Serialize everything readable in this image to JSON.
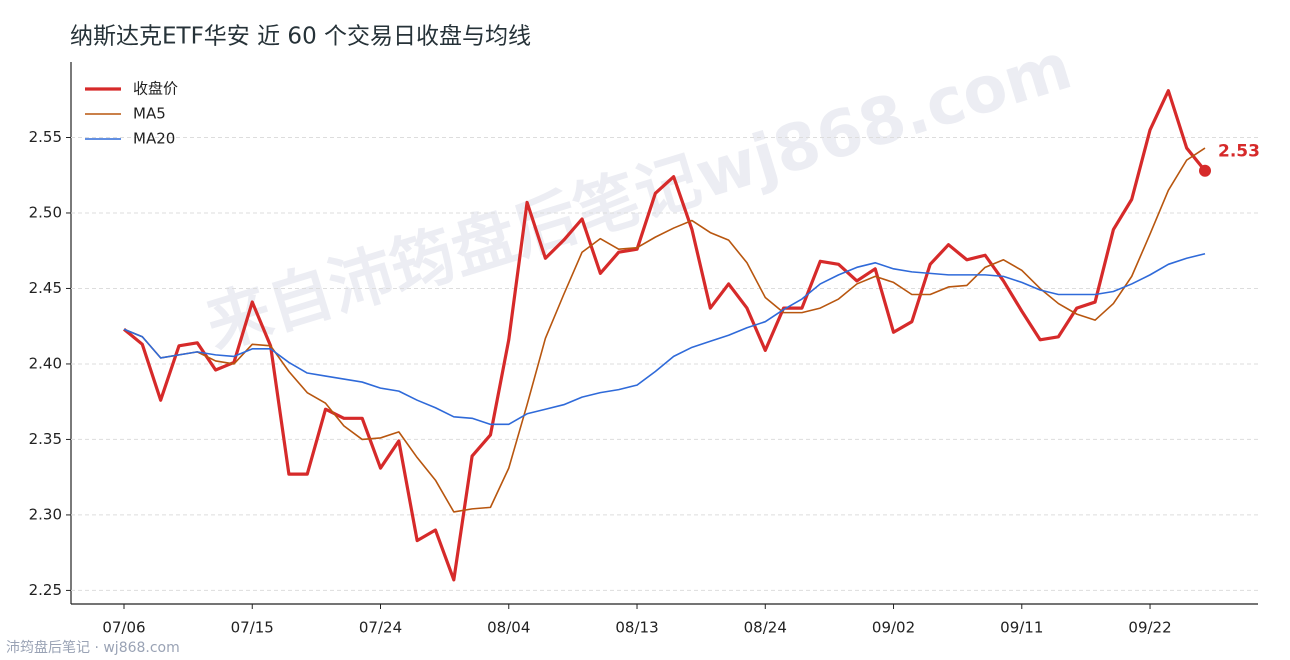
{
  "chart_data": {
    "type": "line",
    "title": "纳斯达克ETF华安 近 60 个交易日收盘与均线",
    "watermark": "来自沛筠盘后笔记wj868.com",
    "footer": "沛筠盘后笔记 · wj868.com",
    "categories": [
      "07/06",
      null,
      null,
      null,
      null,
      null,
      null,
      "07/15",
      null,
      null,
      null,
      null,
      null,
      null,
      "07/24",
      null,
      null,
      null,
      null,
      null,
      null,
      "08/04",
      null,
      null,
      null,
      null,
      null,
      null,
      "08/13",
      null,
      null,
      null,
      null,
      null,
      null,
      "08/24",
      null,
      null,
      null,
      null,
      null,
      null,
      "09/02",
      null,
      null,
      null,
      null,
      null,
      null,
      "09/11",
      null,
      null,
      null,
      null,
      null,
      null,
      "09/22",
      null,
      null,
      null
    ],
    "series": [
      {
        "name": "收盘价",
        "color": "#d62a2a",
        "values": [
          2.423,
          2.413,
          2.376,
          2.412,
          2.414,
          2.396,
          2.401,
          2.441,
          2.412,
          2.327,
          2.327,
          2.37,
          2.364,
          2.364,
          2.331,
          2.349,
          2.283,
          2.29,
          2.257,
          2.339,
          2.353,
          2.416,
          2.507,
          2.47,
          2.482,
          2.496,
          2.46,
          2.474,
          2.476,
          2.513,
          2.524,
          2.489,
          2.437,
          2.453,
          2.437,
          2.409,
          2.437,
          2.437,
          2.468,
          2.466,
          2.455,
          2.463,
          2.421,
          2.428,
          2.466,
          2.479,
          2.469,
          2.472,
          2.455,
          2.435,
          2.416,
          2.418,
          2.437,
          2.441,
          2.489,
          2.509,
          2.555,
          2.581,
          2.543,
          2.528
        ],
        "value_labels": [
          null,
          null,
          null,
          null,
          null,
          null,
          null,
          null,
          null,
          null,
          null,
          null,
          null,
          null,
          null,
          null,
          null,
          null,
          null,
          null,
          null,
          null,
          null,
          null,
          null,
          null,
          null,
          null,
          null,
          null,
          null,
          null,
          null,
          null,
          null,
          null,
          null,
          null,
          null,
          null,
          null,
          null,
          null,
          null,
          null,
          null,
          null,
          null,
          null,
          null,
          null,
          null,
          null,
          null,
          null,
          null,
          null,
          null,
          null,
          "2.53"
        ]
      },
      {
        "name": "MA5",
        "color": "#b8560f",
        "values": [
          2.423,
          2.418,
          2.404,
          2.406,
          2.408,
          2.402,
          2.4,
          2.413,
          2.412,
          2.395,
          2.381,
          2.374,
          2.359,
          2.35,
          2.351,
          2.355,
          2.338,
          2.323,
          2.302,
          2.304,
          2.305,
          2.331,
          2.373,
          2.417,
          2.446,
          2.474,
          2.483,
          2.476,
          2.477,
          2.484,
          2.49,
          2.495,
          2.487,
          2.482,
          2.467,
          2.444,
          2.434,
          2.434,
          2.437,
          2.443,
          2.453,
          2.458,
          2.454,
          2.446,
          2.446,
          2.451,
          2.452,
          2.464,
          2.469,
          2.462,
          2.45,
          2.44,
          2.433,
          2.429,
          2.44,
          2.458,
          2.486,
          2.515,
          2.535,
          2.543
        ]
      },
      {
        "name": "MA20",
        "color": "#2f6ad9",
        "values": [
          2.423,
          2.418,
          2.404,
          2.406,
          2.408,
          2.406,
          2.405,
          2.41,
          2.41,
          2.401,
          2.394,
          2.392,
          2.39,
          2.388,
          2.384,
          2.382,
          2.376,
          2.371,
          2.365,
          2.364,
          2.36,
          2.36,
          2.367,
          2.37,
          2.373,
          2.378,
          2.381,
          2.383,
          2.386,
          2.395,
          2.405,
          2.411,
          2.415,
          2.419,
          2.424,
          2.428,
          2.436,
          2.443,
          2.453,
          2.459,
          2.464,
          2.467,
          2.463,
          2.461,
          2.46,
          2.459,
          2.459,
          2.459,
          2.458,
          2.454,
          2.449,
          2.446,
          2.446,
          2.446,
          2.448,
          2.453,
          2.459,
          2.466,
          2.47,
          2.473
        ]
      }
    ],
    "ylim": [
      2.241,
      2.6
    ],
    "yticks": [
      2.25,
      {
        "value": 2.3,
        "label": "2.30"
      },
      2.35,
      {
        "value": 2.4,
        "label": "2.40"
      },
      2.45,
      {
        "value": 2.5,
        "label": "2.50"
      },
      2.55
    ],
    "grid": true,
    "legend": "upper left"
  }
}
